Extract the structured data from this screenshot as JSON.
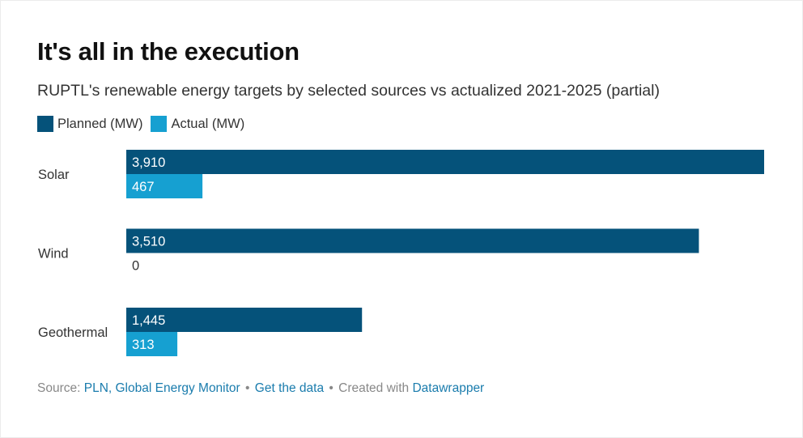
{
  "title": "It's all in the execution",
  "subtitle": "RUPTL's renewable energy targets by selected sources vs actualized 2021-2025 (partial)",
  "legend": [
    {
      "label": "Planned (MW)",
      "color": "#05527a"
    },
    {
      "label": "Actual (MW)",
      "color": "#16a0d1"
    }
  ],
  "chart_data": {
    "type": "bar",
    "orientation": "horizontal",
    "categories": [
      "Solar",
      "Wind",
      "Geothermal"
    ],
    "series": [
      {
        "name": "Planned (MW)",
        "color": "#05527a",
        "values": [
          3910,
          3510,
          1445
        ],
        "labels": [
          "3,910",
          "3,510",
          "1,445"
        ]
      },
      {
        "name": "Actual (MW)",
        "color": "#16a0d1",
        "values": [
          467,
          0,
          313
        ],
        "labels": [
          "467",
          "0",
          "313"
        ]
      }
    ],
    "xlim": [
      0,
      3910
    ],
    "grid": false,
    "legend_position": "top-left"
  },
  "footer": {
    "source_prefix": "Source:",
    "source_link": "PLN, Global Energy Monitor",
    "separator": "•",
    "get_data": "Get the data",
    "created_with": "Created with",
    "tool": "Datawrapper"
  }
}
